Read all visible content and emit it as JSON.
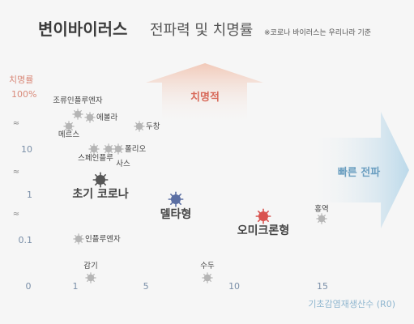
{
  "header": {
    "title_main": "변이바이러스",
    "title_sub": "전파력 및 치명률",
    "note": "※코로나 바이러스는 우리나라 기준"
  },
  "arrows": {
    "up_label": "치명적",
    "right_label": "빠른 전파"
  },
  "chart_data": {
    "type": "scatter",
    "title": "변이바이러스 전파력 및 치명률",
    "xlabel": "기초감염재생산수 (R0)",
    "ylabel": "치명률",
    "ylabel_unit": "100%",
    "x_ticks": [
      "1",
      "5",
      "10",
      "15"
    ],
    "y_ticks": [
      "0",
      "0.1",
      "1",
      "10"
    ],
    "origin_label": "0",
    "axis_break_symbol": "≈",
    "y_scale": "log",
    "colors": {
      "highlight": "#d9534f",
      "delta": "#5b6fa3",
      "covid": "#555555",
      "point": "#b5b5b5"
    },
    "points": [
      {
        "name": "조류인플루엔자",
        "x": 1.2,
        "y": 40,
        "kind": "normal"
      },
      {
        "name": "에볼라",
        "x": 1.9,
        "y": 40,
        "kind": "normal"
      },
      {
        "name": "메르스",
        "x": 0.7,
        "y": 34,
        "kind": "normal"
      },
      {
        "name": "두창",
        "x": 4.7,
        "y": 30,
        "kind": "normal"
      },
      {
        "name": "폴리오",
        "x": 3.3,
        "y": 10,
        "kind": "normal"
      },
      {
        "name": "스페인플루",
        "x": 1.8,
        "y": 10,
        "kind": "normal"
      },
      {
        "name": "사스",
        "x": 2.8,
        "y": 10,
        "kind": "normal"
      },
      {
        "name": "초기 코로나",
        "x": 2.4,
        "y": 2,
        "kind": "covid"
      },
      {
        "name": "델타형",
        "x": 7.0,
        "y": 0.6,
        "kind": "delta"
      },
      {
        "name": "오미크론형",
        "x": 11.5,
        "y": 0.28,
        "kind": "highlight"
      },
      {
        "name": "홍역",
        "x": 15.0,
        "y": 0.28,
        "kind": "normal"
      },
      {
        "name": "인플루엔자",
        "x": 1.3,
        "y": 0.1,
        "kind": "normal"
      },
      {
        "name": "감기",
        "x": 2.0,
        "y": 0.01,
        "kind": "normal"
      },
      {
        "name": "수두",
        "x": 8.5,
        "y": 0.01,
        "kind": "normal"
      }
    ]
  }
}
